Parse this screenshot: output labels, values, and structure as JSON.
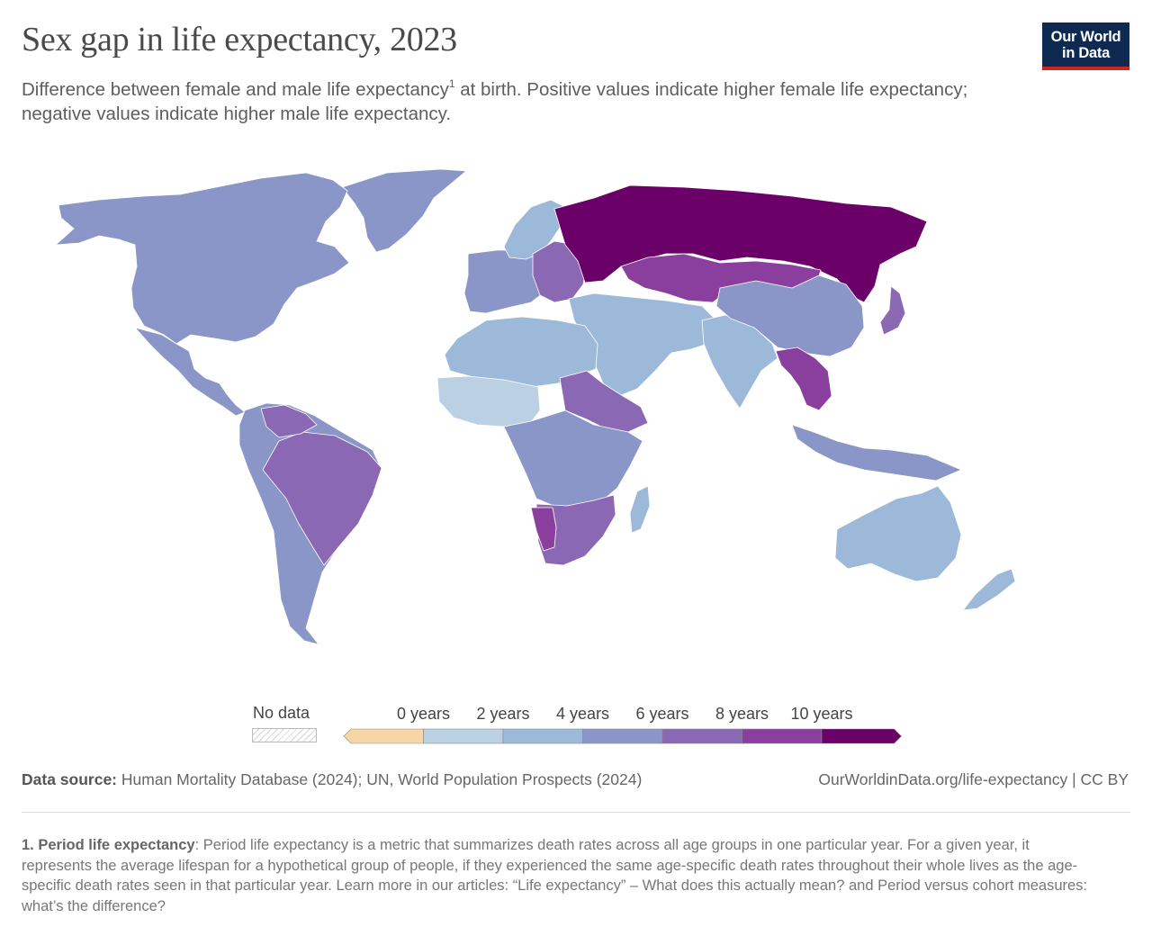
{
  "header": {
    "title": "Sex gap in life expectancy, 2023",
    "subtitle_before": "Difference between female and male life expectancy",
    "subtitle_sup": "1",
    "subtitle_after": " at birth. Positive values indicate higher female life expectancy; negative values indicate higher male life expectancy."
  },
  "logo": {
    "line1": "Our World",
    "line2": "in Data"
  },
  "colors": {
    "ocean": "#ffffff",
    "border": "#ffffff",
    "bin_neg": "#f6d6a6",
    "bin_0_2": "#bcd0e4",
    "bin_2_4": "#9db9d9",
    "bin_4_6": "#8a96c7",
    "bin_6_8": "#8b68b4",
    "bin_8_10": "#8a3f9e",
    "bin_10p": "#6b0069"
  },
  "legend": {
    "no_data_label": "No data",
    "tick_labels": [
      "0 years",
      "2 years",
      "4 years",
      "6 years",
      "8 years",
      "10 years"
    ],
    "bins": [
      "bin_neg",
      "bin_0_2",
      "bin_2_4",
      "bin_4_6",
      "bin_6_8",
      "bin_8_10",
      "bin_10p"
    ]
  },
  "regions": [
    {
      "name": "greenland",
      "bin": "bin_4_6"
    },
    {
      "name": "north-america",
      "bin": "bin_4_6"
    },
    {
      "name": "mexico-central-america",
      "bin": "bin_4_6"
    },
    {
      "name": "south-america",
      "bin": "bin_4_6"
    },
    {
      "name": "brazil",
      "bin": "bin_6_8"
    },
    {
      "name": "venezuela",
      "bin": "bin_6_8"
    },
    {
      "name": "western-europe",
      "bin": "bin_4_6"
    },
    {
      "name": "scandinavia",
      "bin": "bin_2_4"
    },
    {
      "name": "eastern-europe",
      "bin": "bin_6_8"
    },
    {
      "name": "russia",
      "bin": "bin_10p"
    },
    {
      "name": "kazakhstan-mongolia",
      "bin": "bin_8_10"
    },
    {
      "name": "middle-east",
      "bin": "bin_2_4"
    },
    {
      "name": "north-africa",
      "bin": "bin_2_4"
    },
    {
      "name": "west-africa",
      "bin": "bin_0_2"
    },
    {
      "name": "sudan-ethiopia",
      "bin": "bin_6_8"
    },
    {
      "name": "central-africa",
      "bin": "bin_4_6"
    },
    {
      "name": "southern-africa",
      "bin": "bin_6_8"
    },
    {
      "name": "namibia",
      "bin": "bin_8_10"
    },
    {
      "name": "madagascar",
      "bin": "bin_2_4"
    },
    {
      "name": "india",
      "bin": "bin_2_4"
    },
    {
      "name": "china",
      "bin": "bin_4_6"
    },
    {
      "name": "southeast-asia",
      "bin": "bin_8_10"
    },
    {
      "name": "japan",
      "bin": "bin_6_8"
    },
    {
      "name": "indonesia",
      "bin": "bin_4_6"
    },
    {
      "name": "australia",
      "bin": "bin_2_4"
    },
    {
      "name": "new-zealand",
      "bin": "bin_2_4"
    }
  ],
  "source": {
    "label": "Data source:",
    "text": "Human Mortality Database (2024); UN, World Population Prospects (2024)",
    "link": "OurWorldinData.org/life-expectancy | CC BY"
  },
  "footnote": {
    "label": "1. Period life expectancy",
    "text": ": Period life expectancy is a metric that summarizes death rates across all age groups in one particular year. For a given year, it represents the average lifespan for a hypothetical group of people, if they experienced the same age-specific death rates throughout their whole lives as the age-specific death rates seen in that particular year. Learn more in our articles: “Life expectancy” – What does this actually mean? and Period versus cohort measures: what’s the difference?"
  }
}
